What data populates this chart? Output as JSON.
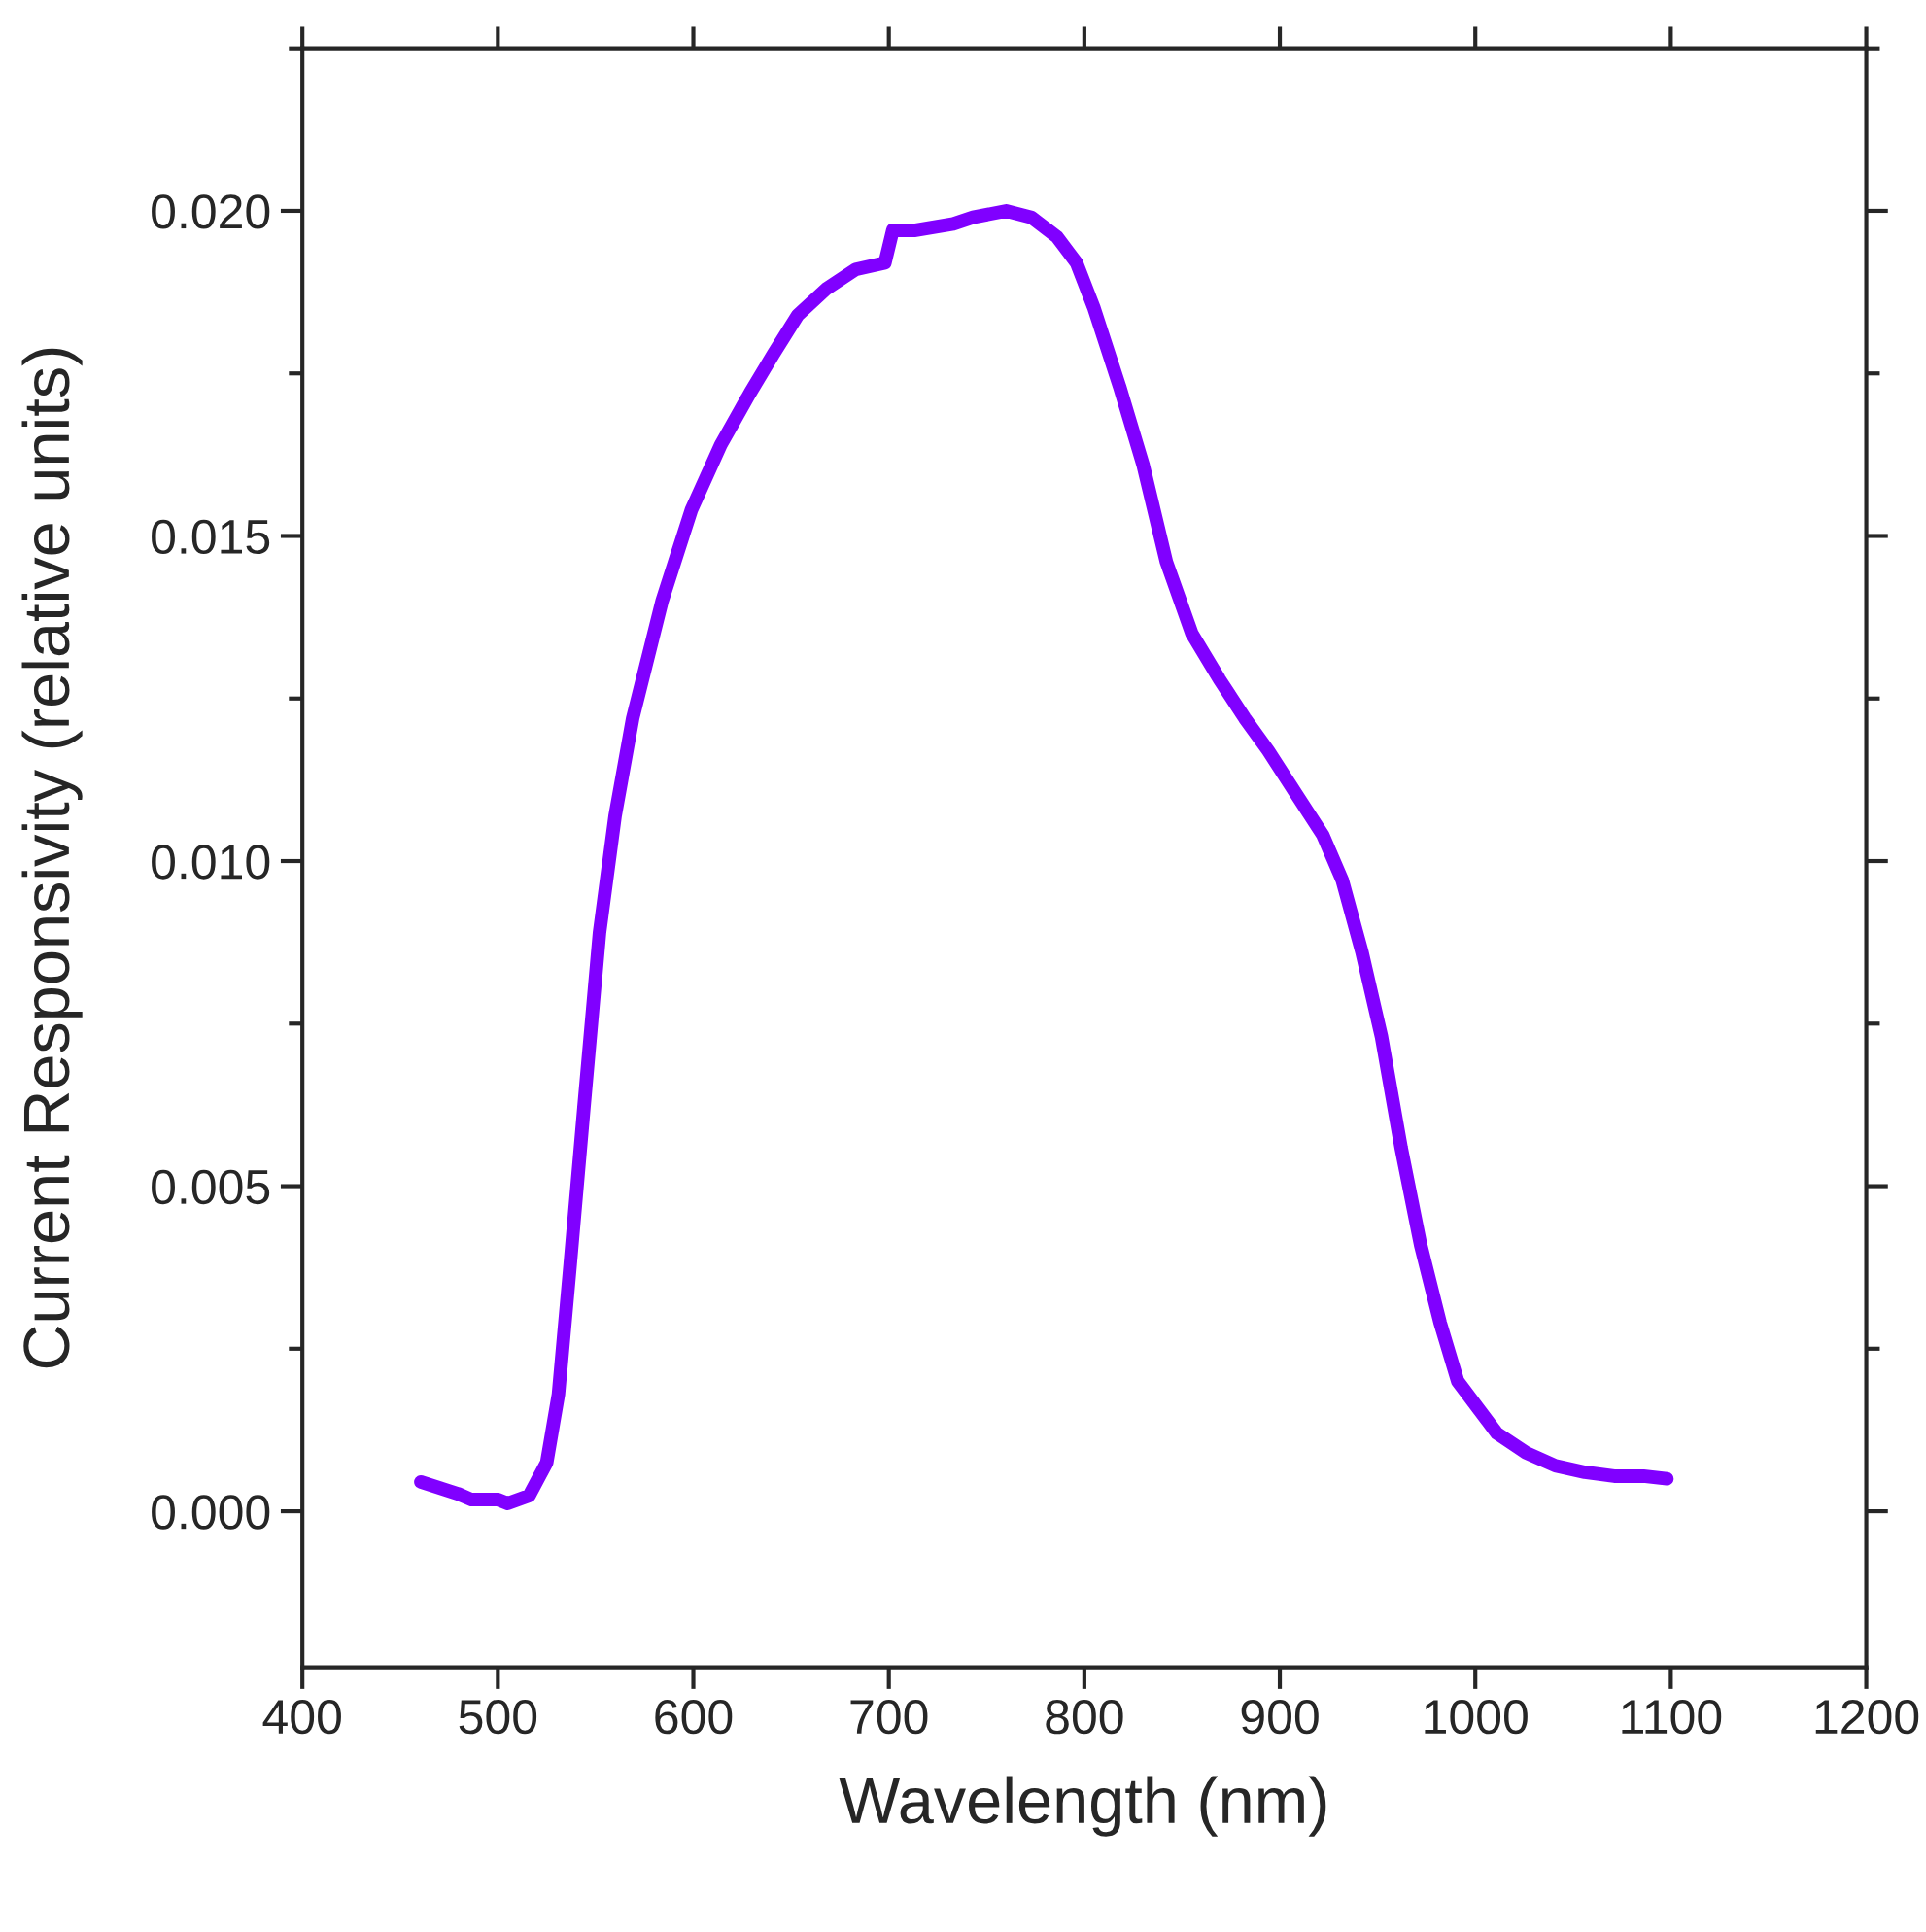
{
  "chart_data": {
    "type": "line",
    "xlabel": "Wavelength (nm)",
    "ylabel": "Current Responsivity (relative units)",
    "xlim": [
      400,
      1200
    ],
    "xticks": [
      400,
      500,
      600,
      700,
      800,
      900,
      1000,
      1100,
      1200
    ],
    "ylim": [
      -0.0024,
      0.0225
    ],
    "yticks": [
      {
        "value": 0,
        "label": "0.000"
      },
      {
        "value": 0.005,
        "label": "0.005"
      },
      {
        "value": 0.01,
        "label": "0.010"
      },
      {
        "value": 0.015,
        "label": "0.015"
      },
      {
        "value": 0.02,
        "label": "0.020"
      }
    ],
    "grid": false,
    "legend": false,
    "marker": "none",
    "line_style": "solid",
    "series": [
      {
        "color": "#8000ff",
        "x": [
          460.6,
          479.5,
          486.5,
          500,
          505,
          516,
          525,
          531,
          537,
          544,
          552,
          560,
          569,
          584,
          599,
          614,
          629,
          641,
          653.5,
          668,
          683,
          698,
          702,
          713,
          733,
          743,
          760,
          773,
          786,
          796,
          805,
          818,
          830,
          842,
          855,
          869,
          882,
          894,
          909,
          922,
          932,
          942,
          952,
          962,
          972,
          982,
          991,
          1001,
          1011,
          1026,
          1041,
          1056,
          1071,
          1086,
          1098
        ],
        "values": [
          0.00045,
          0.00027,
          0.00018,
          0.00018,
          0.00012,
          0.00024,
          0.00075,
          0.0018,
          0.0038,
          0.0062,
          0.0089,
          0.0107,
          0.0122,
          0.014,
          0.0154,
          0.0164,
          0.0172,
          0.0178,
          0.0184,
          0.0188,
          0.0191,
          0.0192,
          0.0197,
          0.0197,
          0.0198,
          0.0199,
          0.02,
          0.0199,
          0.0196,
          0.0192,
          0.0185,
          0.0173,
          0.0161,
          0.0146,
          0.0135,
          0.0128,
          0.0122,
          0.0117,
          0.011,
          0.0104,
          0.0097,
          0.0086,
          0.0073,
          0.0056,
          0.0041,
          0.0029,
          0.002,
          0.0016,
          0.0012,
          0.0009,
          0.0007,
          0.0006,
          0.00054,
          0.00054,
          0.0005
        ]
      }
    ]
  }
}
